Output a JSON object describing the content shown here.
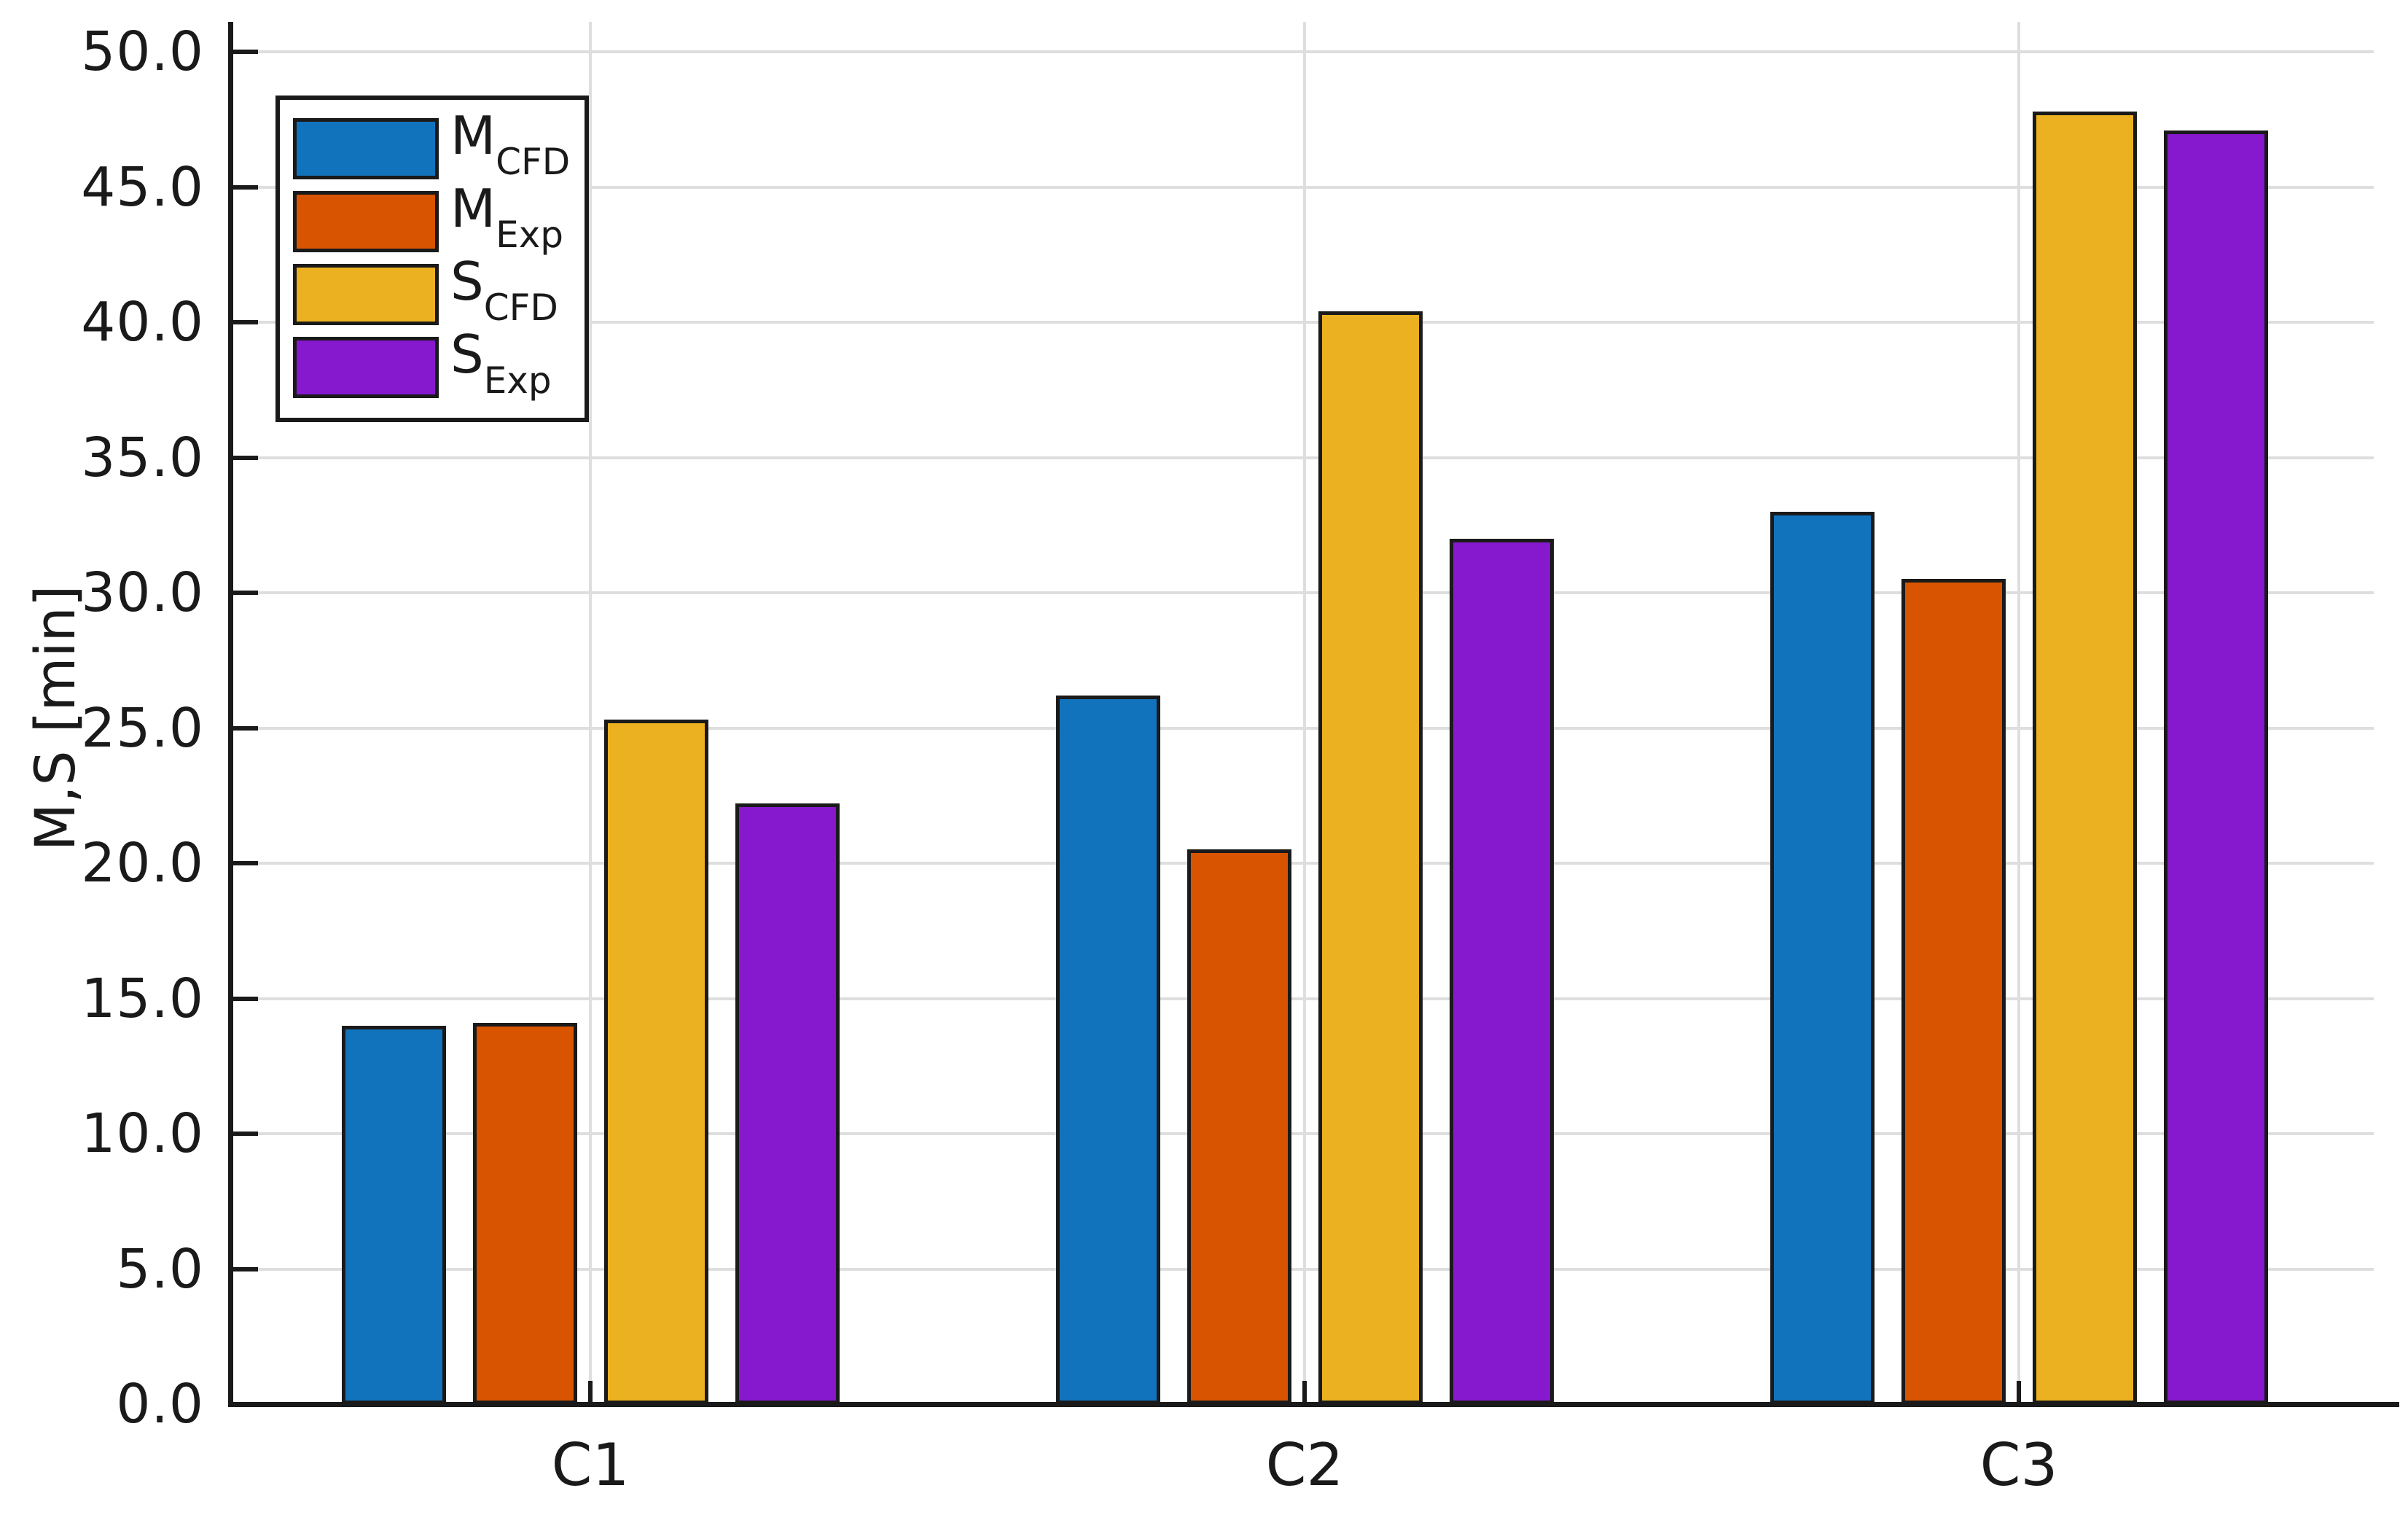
{
  "chart_data": {
    "type": "bar",
    "title": "",
    "categories": [
      "C1",
      "C2",
      "C3"
    ],
    "series": [
      {
        "name": "M_CFD",
        "label_main": "M",
        "label_sub": "CFD",
        "color": "#1273bd",
        "values": [
          14.0,
          26.2,
          33.0
        ]
      },
      {
        "name": "M_Exp",
        "label_main": "M",
        "label_sub": "Exp",
        "color": "#d85400",
        "values": [
          14.1,
          20.5,
          30.5
        ]
      },
      {
        "name": "S_CFD",
        "label_main": "S",
        "label_sub": "CFD",
        "color": "#ecb120",
        "values": [
          25.3,
          40.4,
          47.8
        ]
      },
      {
        "name": "S_Exp",
        "label_main": "S",
        "label_sub": "Exp",
        "color": "#8618ce",
        "values": [
          22.2,
          32.0,
          47.1
        ]
      }
    ],
    "xlabel": "",
    "ylabel": "M,S [min]",
    "ylim": [
      0.0,
      50.0
    ],
    "ytick_step": 5.0,
    "ytick_labels": [
      "0.0",
      "5.0",
      "10.0",
      "15.0",
      "20.0",
      "25.0",
      "30.0",
      "35.0",
      "40.0",
      "45.0",
      "50.0"
    ],
    "grid": true,
    "legend_position": "top-left"
  },
  "colors": {
    "background": "#ffffff",
    "grid": "#dedede",
    "axis": "#1a1a1a",
    "bar_border": "#1a1a1a",
    "text": "#1a1a1a"
  }
}
